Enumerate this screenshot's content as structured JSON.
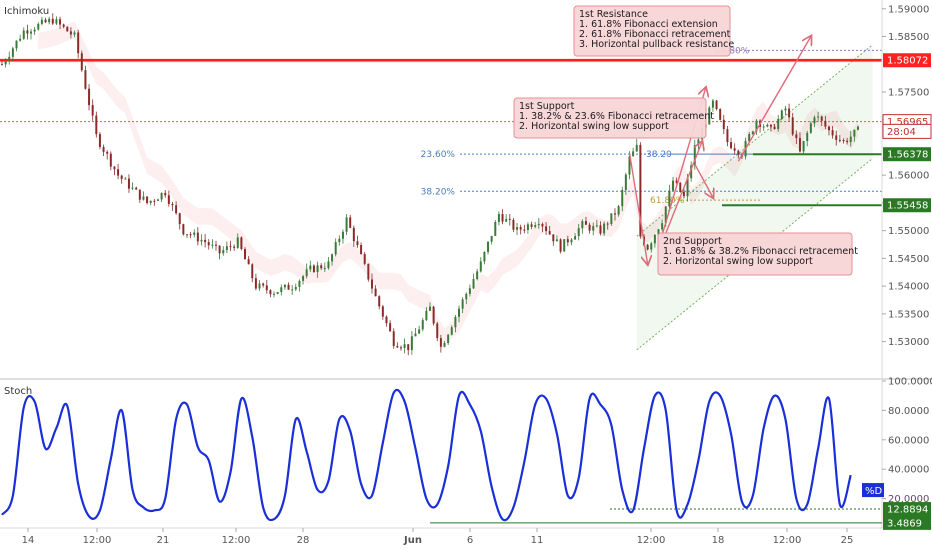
{
  "panes": {
    "main_indicator": "Ichimoku",
    "lower_indicator": "Stoch",
    "lower_series_label": "%D"
  },
  "colors": {
    "candle_up": "#3a7a38",
    "candle_down": "#8a2a2a",
    "resistance": "#ff0000",
    "support": "#2a7a24",
    "channel": "#7ab060",
    "fib": "#4a7bc0",
    "fib_ext": "#9a78c0",
    "stoch": "#1a2fd8",
    "note_bg": "#f8d5d7",
    "note_border": "#e58a92",
    "arrow": "#e06a7a"
  },
  "notes": {
    "resistance": [
      "1st Resistance",
      "1. 61.8% Fibonacci extension",
      "2. 61.8% Fibonacci retracement",
      "3. Horizontal pullback resistance"
    ],
    "support1": [
      "1st Support",
      "1. 38.2% & 23.6% Fibonacci retracement",
      "2. Horizontal swing low support"
    ],
    "support2": [
      "2nd Support",
      "1. 61.8% & 38.2% Fibonacci retracement",
      "2. Horizontal swing low support"
    ]
  },
  "chart_data": [
    {
      "type": "candlestick",
      "indicator": "Ichimoku",
      "x_ticks": [
        "14",
        "12:00",
        "21",
        "12:00",
        "28",
        "Jun",
        "6",
        "11",
        "12:00",
        "18",
        "12:00",
        "25"
      ],
      "y_ticks": [
        "1.59000",
        "1.58500",
        "1.57500",
        "1.57000",
        "1.56000",
        "1.55500",
        "1.55000",
        "1.54500",
        "1.54000",
        "1.53500",
        "1.53000"
      ],
      "ylim": [
        1.5265,
        1.5905
      ],
      "price_path": [
        [
          0,
          1.58
        ],
        [
          6,
          1.586
        ],
        [
          14,
          1.588
        ],
        [
          20,
          1.585
        ],
        [
          22,
          1.579
        ],
        [
          26,
          1.567
        ],
        [
          32,
          1.56
        ],
        [
          40,
          1.555
        ],
        [
          45,
          1.557
        ],
        [
          50,
          1.55
        ],
        [
          56,
          1.548
        ],
        [
          60,
          1.546
        ],
        [
          65,
          1.548
        ],
        [
          70,
          1.54
        ],
        [
          75,
          1.539
        ],
        [
          80,
          1.54
        ],
        [
          85,
          1.543
        ],
        [
          90,
          1.544
        ],
        [
          95,
          1.552
        ],
        [
          98,
          1.547
        ],
        [
          103,
          1.538
        ],
        [
          108,
          1.53
        ],
        [
          112,
          1.529
        ],
        [
          118,
          1.536
        ],
        [
          121,
          1.529
        ],
        [
          126,
          1.536
        ],
        [
          132,
          1.544
        ],
        [
          137,
          1.553
        ],
        [
          142,
          1.55
        ],
        [
          148,
          1.552
        ],
        [
          154,
          1.547
        ],
        [
          160,
          1.551
        ],
        [
          165,
          1.55
        ],
        [
          170,
          1.554
        ],
        [
          173,
          1.563
        ],
        [
          175,
          1.565
        ],
        [
          176,
          1.549
        ],
        [
          178,
          1.547
        ],
        [
          182,
          1.552
        ],
        [
          185,
          1.559
        ],
        [
          188,
          1.556
        ],
        [
          191,
          1.565
        ],
        [
          196,
          1.573
        ],
        [
          200,
          1.566
        ],
        [
          204,
          1.564
        ],
        [
          208,
          1.57
        ],
        [
          212,
          1.568
        ],
        [
          216,
          1.572
        ],
        [
          220,
          1.564
        ],
        [
          224,
          1.571
        ],
        [
          228,
          1.568
        ],
        [
          232,
          1.566
        ],
        [
          236,
          1.568
        ]
      ],
      "price_path_length": 236,
      "levels": [
        {
          "label": "1.58072",
          "value": 1.58072,
          "role": "1st Resistance"
        },
        {
          "label": "1.56965",
          "value": 1.56965,
          "role": "current price"
        },
        {
          "label": "28:04",
          "value": 1.5679,
          "role": "countdown"
        },
        {
          "label": "1.56378",
          "value": 1.56378,
          "role": "1st Support"
        },
        {
          "label": "1.55458",
          "value": 1.55458,
          "role": "2nd Support"
        }
      ],
      "fib_levels": [
        {
          "label": "23.60%",
          "value": 1.5638
        },
        {
          "label": "38.20%",
          "value": 1.5571
        },
        {
          "label": "61.80%",
          "value": 1.5825
        },
        {
          "label": "38.20",
          "value": 1.5638
        },
        {
          "label": "61.80%",
          "value": 1.5555
        }
      ],
      "channel": {
        "start": [
          175,
          1.5285
        ],
        "end": [
          240,
          1.563
        ],
        "offset": 0.0205
      }
    },
    {
      "type": "line",
      "indicator": "Stoch",
      "series": [
        {
          "name": "%D"
        }
      ],
      "y_ticks": [
        "100.0000",
        "80.0000",
        "60.0000",
        "40.0000",
        "20.0000"
      ],
      "ylim": [
        0,
        100
      ],
      "x": [
        0,
        3,
        6,
        9,
        12,
        15,
        18,
        21,
        24,
        27,
        30,
        33,
        36,
        39,
        42,
        45,
        48,
        51,
        54,
        57,
        60,
        63,
        66,
        69,
        72,
        75,
        78,
        81,
        84,
        87,
        90,
        93,
        96,
        99,
        102,
        105,
        108,
        111,
        114,
        117,
        120,
        123,
        126,
        129,
        132,
        135,
        138,
        141,
        144,
        147,
        150,
        153,
        156,
        159,
        162,
        165,
        168,
        171,
        174,
        177,
        180,
        183,
        186,
        189,
        192,
        195,
        198,
        201,
        204,
        207,
        210,
        213,
        216,
        219,
        222,
        225,
        228,
        231,
        234
      ],
      "values": [
        9,
        22,
        82,
        86,
        54,
        68,
        83,
        30,
        8,
        12,
        47,
        80,
        26,
        14,
        12,
        20,
        74,
        84,
        55,
        46,
        18,
        38,
        88,
        62,
        14,
        6,
        22,
        74,
        52,
        26,
        32,
        74,
        66,
        30,
        22,
        58,
        92,
        86,
        54,
        20,
        16,
        42,
        90,
        84,
        66,
        28,
        6,
        14,
        45,
        84,
        88,
        64,
        22,
        34,
        88,
        84,
        70,
        26,
        12,
        54,
        90,
        80,
        12,
        16,
        46,
        86,
        90,
        64,
        18,
        22,
        68,
        90,
        74,
        20,
        16,
        54,
        88,
        16,
        36
      ],
      "levels": [
        {
          "label": "12.8894",
          "value": 12.8894
        },
        {
          "label": "3.4869",
          "value": 3.4869
        }
      ]
    }
  ]
}
